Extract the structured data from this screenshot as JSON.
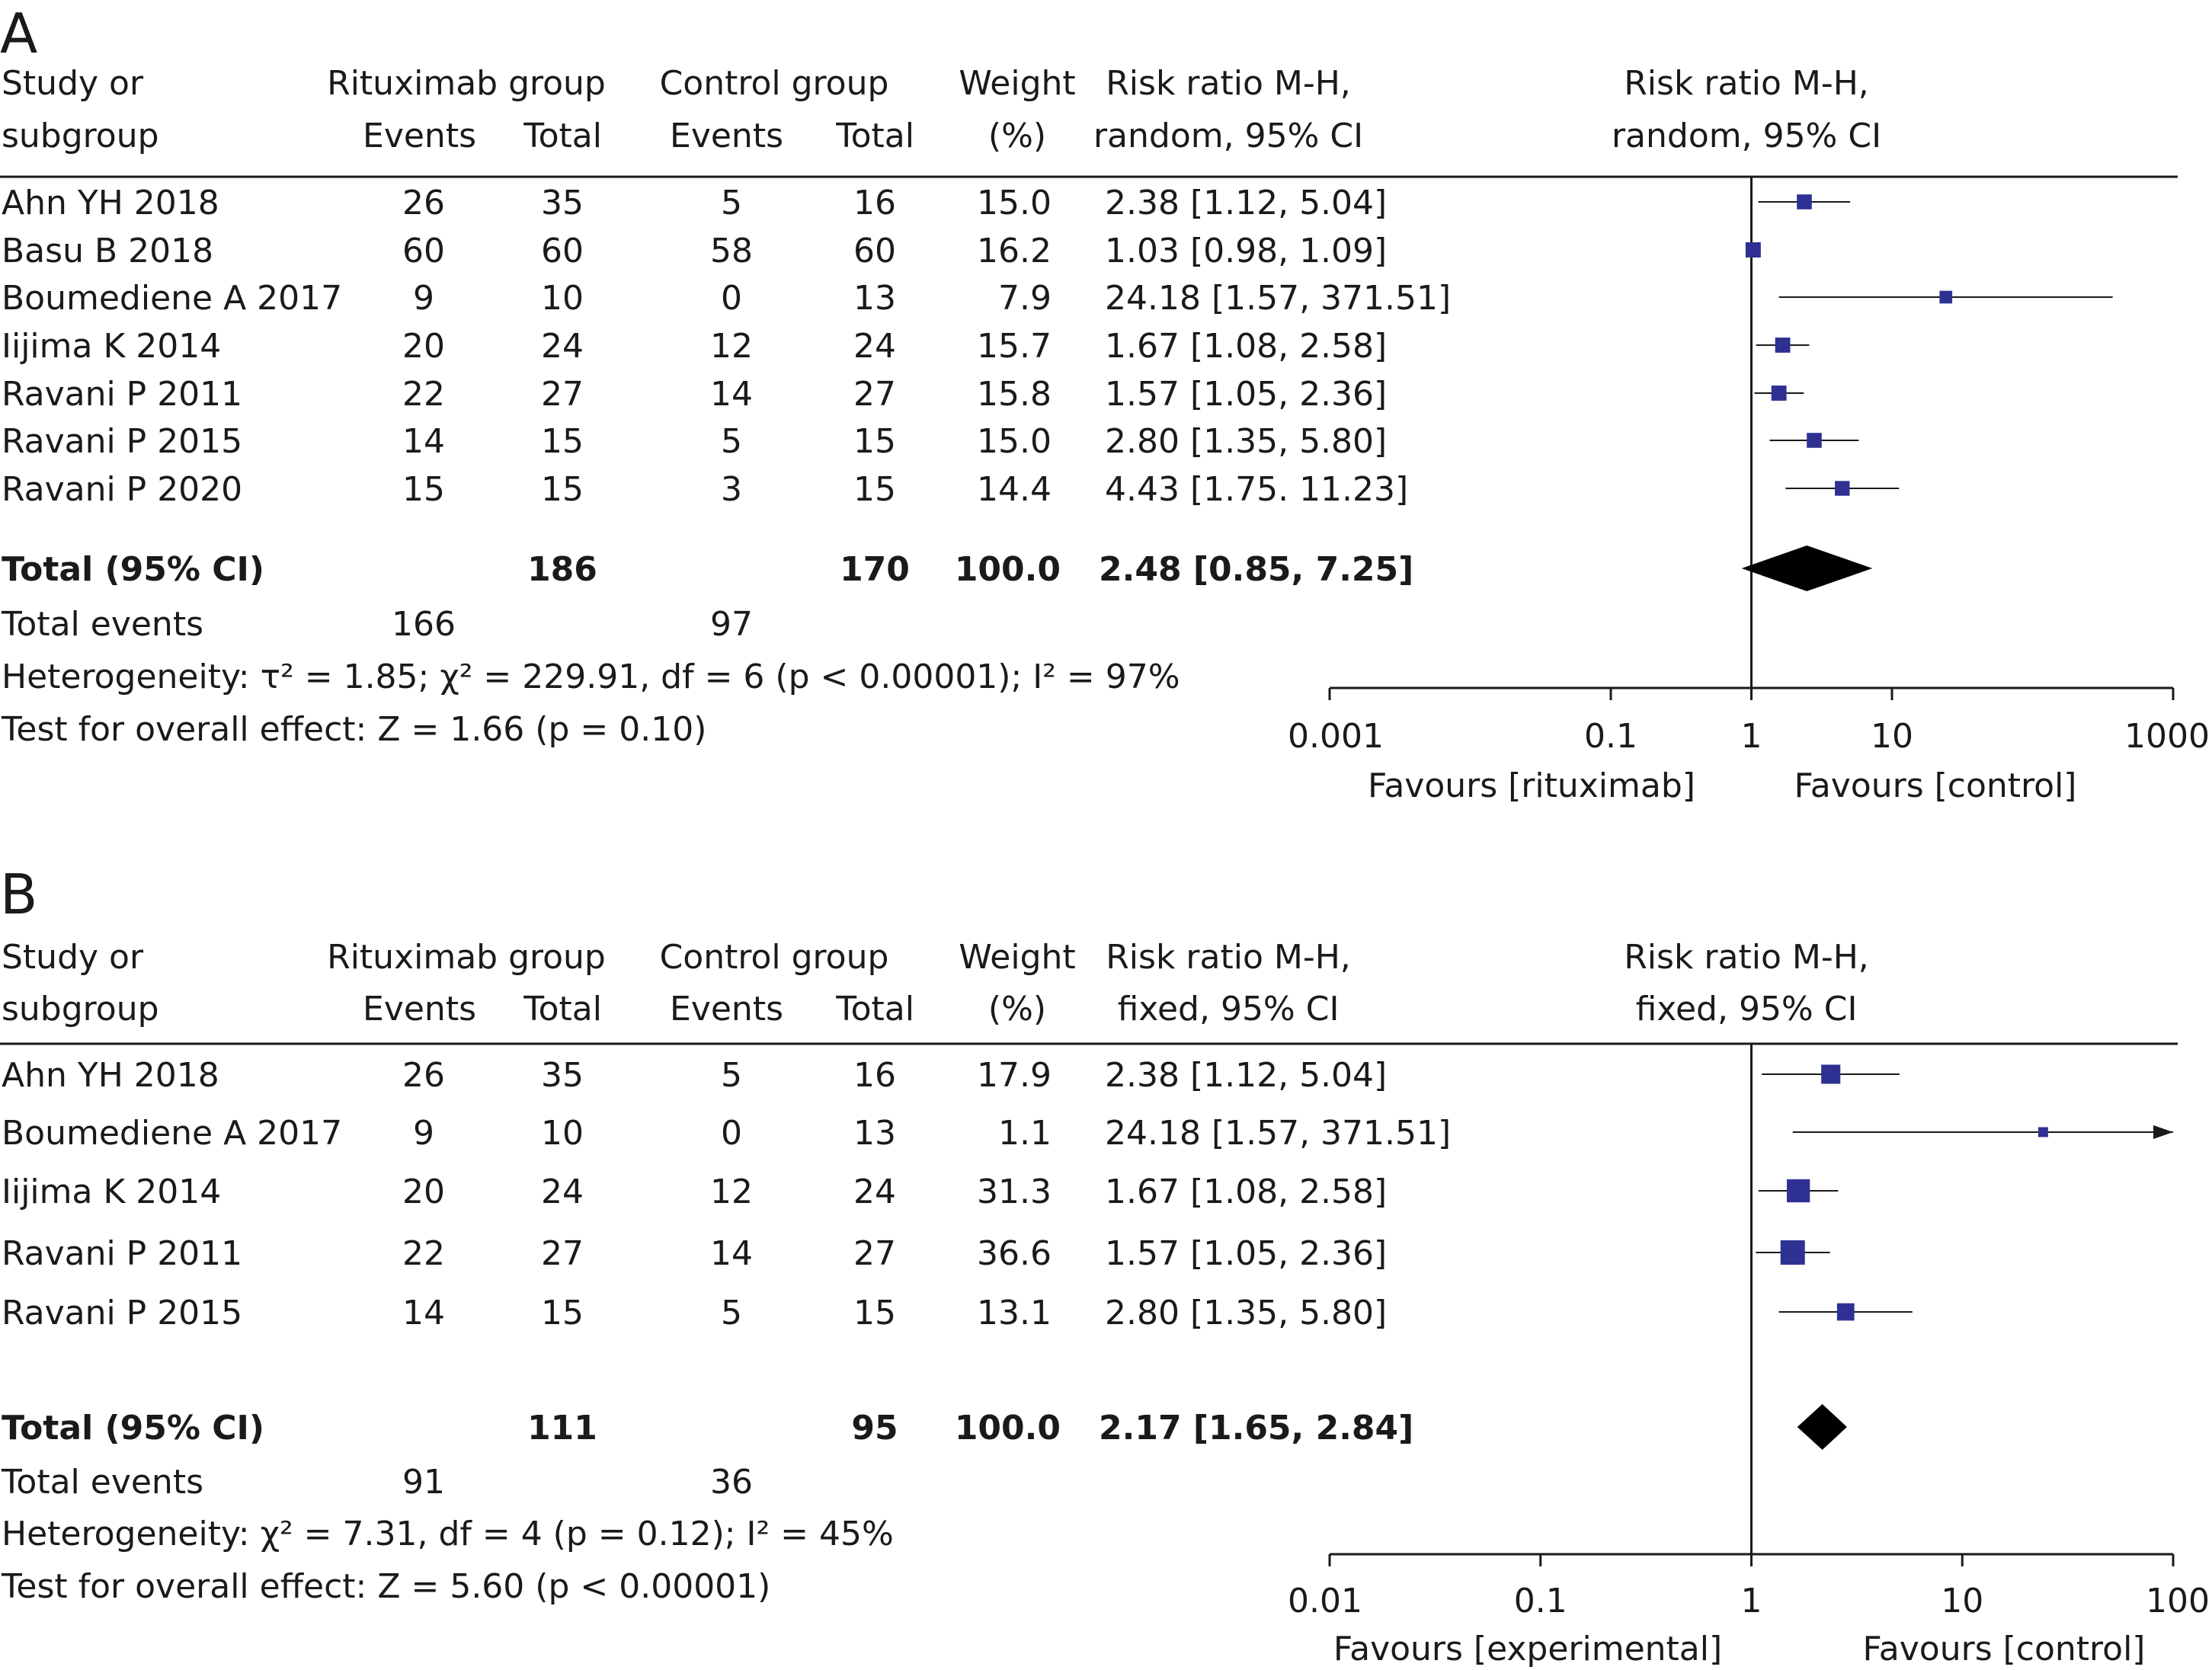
{
  "colors": {
    "marker": "#2e3192",
    "line": "#1a1a1a",
    "diamond": "#000000"
  },
  "panels": [
    {
      "label": "A",
      "headers": {
        "study_1": "Study or",
        "study_2": "subgroup",
        "ritux_group": "Rituximab group",
        "ritux_events": "Events",
        "ritux_total": "Total",
        "ctrl_group": "Control group",
        "ctrl_events": "Events",
        "ctrl_total": "Total",
        "weight_1": "Weight",
        "weight_2": "(%)",
        "rr_1": "Risk ratio M-H,",
        "rr_2": "random, 95% CI",
        "plot_1": "Risk ratio M-H,",
        "plot_2": "random, 95% CI"
      },
      "rows": [
        {
          "study": "Ahn YH 2018",
          "ritux_events": "26",
          "ritux_total": "35",
          "ctrl_events": "5",
          "ctrl_total": "16",
          "weight": "15.0",
          "rr_text": "2.38 [1.12, 5.04]"
        },
        {
          "study": "Basu B 2018",
          "ritux_events": "60",
          "ritux_total": "60",
          "ctrl_events": "58",
          "ctrl_total": "60",
          "weight": "16.2",
          "rr_text": "1.03 [0.98, 1.09]"
        },
        {
          "study": "Boumediene A 2017",
          "ritux_events": "9",
          "ritux_total": "10",
          "ctrl_events": "0",
          "ctrl_total": "13",
          "weight": "7.9",
          "rr_text": "24.18 [1.57, 371.51]"
        },
        {
          "study": "Iijima K 2014",
          "ritux_events": "20",
          "ritux_total": "24",
          "ctrl_events": "12",
          "ctrl_total": "24",
          "weight": "15.7",
          "rr_text": "1.67 [1.08, 2.58]"
        },
        {
          "study": "Ravani P 2011",
          "ritux_events": "22",
          "ritux_total": "27",
          "ctrl_events": "14",
          "ctrl_total": "27",
          "weight": "15.8",
          "rr_text": "1.57 [1.05, 2.36]"
        },
        {
          "study": "Ravani P 2015",
          "ritux_events": "14",
          "ritux_total": "15",
          "ctrl_events": "5",
          "ctrl_total": "15",
          "weight": "15.0",
          "rr_text": "2.80 [1.35, 5.80]"
        },
        {
          "study": "Ravani P 2020",
          "ritux_events": "15",
          "ritux_total": "15",
          "ctrl_events": "3",
          "ctrl_total": "15",
          "weight": "14.4",
          "rr_text": "4.43 [1.75. 11.23]"
        }
      ],
      "total": {
        "label": "Total (95% CI)",
        "ritux_total": "186",
        "ctrl_total": "170",
        "weight": "100.0",
        "rr_text": "2.48 [0.85, 7.25]"
      },
      "total_events": {
        "label": "Total events",
        "ritux": "166",
        "ctrl": "97"
      },
      "heterogeneity": "Heterogeneity: τ² = 1.85; χ² = 229.91, df = 6 (p < 0.00001); I² = 97%",
      "overall_effect": "Test for overall effect: Z = 1.66 (p = 0.10)",
      "axis": {
        "scale": "log",
        "ticks": [
          0.001,
          0.1,
          1,
          10,
          1000
        ],
        "tick_labels": [
          "0.001",
          "0.1",
          "1",
          "10",
          "1000"
        ],
        "favours_left": "Favours [rituximab]",
        "favours_right": "Favours [control]"
      }
    },
    {
      "label": "B",
      "headers": {
        "study_1": "Study or",
        "study_2": "subgroup",
        "ritux_group": "Rituximab group",
        "ritux_events": "Events",
        "ritux_total": "Total",
        "ctrl_group": "Control group",
        "ctrl_events": "Events",
        "ctrl_total": "Total",
        "weight_1": "Weight",
        "weight_2": "(%)",
        "rr_1": "Risk ratio M-H,",
        "rr_2": "fixed, 95% CI",
        "plot_1": "Risk ratio M-H,",
        "plot_2": "fixed, 95% CI"
      },
      "rows": [
        {
          "study": "Ahn YH 2018",
          "ritux_events": "26",
          "ritux_total": "35",
          "ctrl_events": "5",
          "ctrl_total": "16",
          "weight": "17.9",
          "rr_text": "2.38 [1.12, 5.04]"
        },
        {
          "study": "Boumediene A 2017",
          "ritux_events": "9",
          "ritux_total": "10",
          "ctrl_events": "0",
          "ctrl_total": "13",
          "weight": "1.1",
          "rr_text": "24.18 [1.57, 371.51]"
        },
        {
          "study": "Iijima K 2014",
          "ritux_events": "20",
          "ritux_total": "24",
          "ctrl_events": "12",
          "ctrl_total": "24",
          "weight": "31.3",
          "rr_text": "1.67 [1.08, 2.58]"
        },
        {
          "study": "Ravani P 2011",
          "ritux_events": "22",
          "ritux_total": "27",
          "ctrl_events": "14",
          "ctrl_total": "27",
          "weight": "36.6",
          "rr_text": "1.57 [1.05, 2.36]"
        },
        {
          "study": "Ravani P 2015",
          "ritux_events": "14",
          "ritux_total": "15",
          "ctrl_events": "5",
          "ctrl_total": "15",
          "weight": "13.1",
          "rr_text": "2.80 [1.35, 5.80]"
        }
      ],
      "total": {
        "label": "Total (95% CI)",
        "ritux_total": "111",
        "ctrl_total": "95",
        "weight": "100.0",
        "rr_text": "2.17 [1.65, 2.84]"
      },
      "total_events": {
        "label": "Total events",
        "ritux": "91",
        "ctrl": "36"
      },
      "heterogeneity": "Heterogeneity: χ² = 7.31, df = 4 (p = 0.12); I² = 45%",
      "overall_effect": "Test for overall effect: Z = 5.60 (p < 0.00001)",
      "axis": {
        "scale": "log",
        "ticks": [
          0.01,
          0.1,
          1,
          10,
          100
        ],
        "tick_labels": [
          "0.01",
          "0.1",
          "1",
          "10",
          "100"
        ],
        "favours_left": "Favours [experimental]",
        "favours_right": "Favours [control]"
      }
    }
  ],
  "chart_data": [
    {
      "type": "scatter",
      "subtype": "forest-plot",
      "title": "A",
      "xscale": "log",
      "xlim": [
        0.001,
        1000
      ],
      "xticks": [
        0.001,
        0.1,
        1,
        10,
        1000
      ],
      "xlabel_left": "Favours [rituximab]",
      "xlabel_right": "Favours [control]",
      "studies": [
        {
          "name": "Ahn YH 2018",
          "rr": 2.38,
          "lo": 1.12,
          "hi": 5.04,
          "weight": 15.0
        },
        {
          "name": "Basu B 2018",
          "rr": 1.03,
          "lo": 0.98,
          "hi": 1.09,
          "weight": 16.2
        },
        {
          "name": "Boumediene A 2017",
          "rr": 24.18,
          "lo": 1.57,
          "hi": 371.51,
          "weight": 7.9
        },
        {
          "name": "Iijima K 2014",
          "rr": 1.67,
          "lo": 1.08,
          "hi": 2.58,
          "weight": 15.7
        },
        {
          "name": "Ravani P 2011",
          "rr": 1.57,
          "lo": 1.05,
          "hi": 2.36,
          "weight": 15.8
        },
        {
          "name": "Ravani P 2015",
          "rr": 2.8,
          "lo": 1.35,
          "hi": 5.8,
          "weight": 15.0
        },
        {
          "name": "Ravani P 2020",
          "rr": 4.43,
          "lo": 1.75,
          "hi": 11.23,
          "weight": 14.4
        }
      ],
      "pooled": {
        "rr": 2.48,
        "lo": 0.85,
        "hi": 7.25
      }
    },
    {
      "type": "scatter",
      "subtype": "forest-plot",
      "title": "B",
      "xscale": "log",
      "xlim": [
        0.01,
        100
      ],
      "xticks": [
        0.01,
        0.1,
        1,
        10,
        100
      ],
      "xlabel_left": "Favours [experimental]",
      "xlabel_right": "Favours [control]",
      "studies": [
        {
          "name": "Ahn YH 2018",
          "rr": 2.38,
          "lo": 1.12,
          "hi": 5.04,
          "weight": 17.9
        },
        {
          "name": "Boumediene A 2017",
          "rr": 24.18,
          "lo": 1.57,
          "hi": 371.51,
          "weight": 1.1
        },
        {
          "name": "Iijima K 2014",
          "rr": 1.67,
          "lo": 1.08,
          "hi": 2.58,
          "weight": 31.3
        },
        {
          "name": "Ravani P 2011",
          "rr": 1.57,
          "lo": 1.05,
          "hi": 2.36,
          "weight": 36.6
        },
        {
          "name": "Ravani P 2015",
          "rr": 2.8,
          "lo": 1.35,
          "hi": 5.8,
          "weight": 13.1
        }
      ],
      "pooled": {
        "rr": 2.17,
        "lo": 1.65,
        "hi": 2.84
      }
    }
  ]
}
